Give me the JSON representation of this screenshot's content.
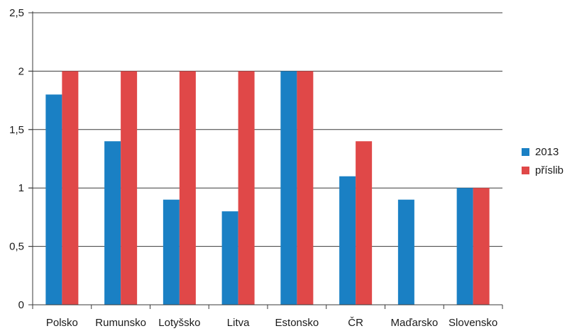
{
  "chart_data": {
    "type": "bar",
    "categories": [
      "Polsko",
      "Rumunsko",
      "Lotyšsko",
      "Litva",
      "Estonsko",
      "ČR",
      "Maďarsko",
      "Slovensko"
    ],
    "series": [
      {
        "name": "2013",
        "values": [
          1.8,
          1.4,
          0.9,
          0.8,
          2.0,
          1.1,
          0.9,
          1.0
        ],
        "color": "#1a80c4"
      },
      {
        "name": "příslib",
        "values": [
          2.0,
          2.0,
          2.0,
          2.0,
          2.0,
          1.4,
          null,
          1.0
        ],
        "color": "#e04848"
      }
    ],
    "y_ticks": [
      "0",
      "0,5",
      "1",
      "1,5",
      "2",
      "2,5"
    ],
    "ylim": [
      0,
      2.5
    ],
    "grid": true,
    "legend": "right"
  }
}
